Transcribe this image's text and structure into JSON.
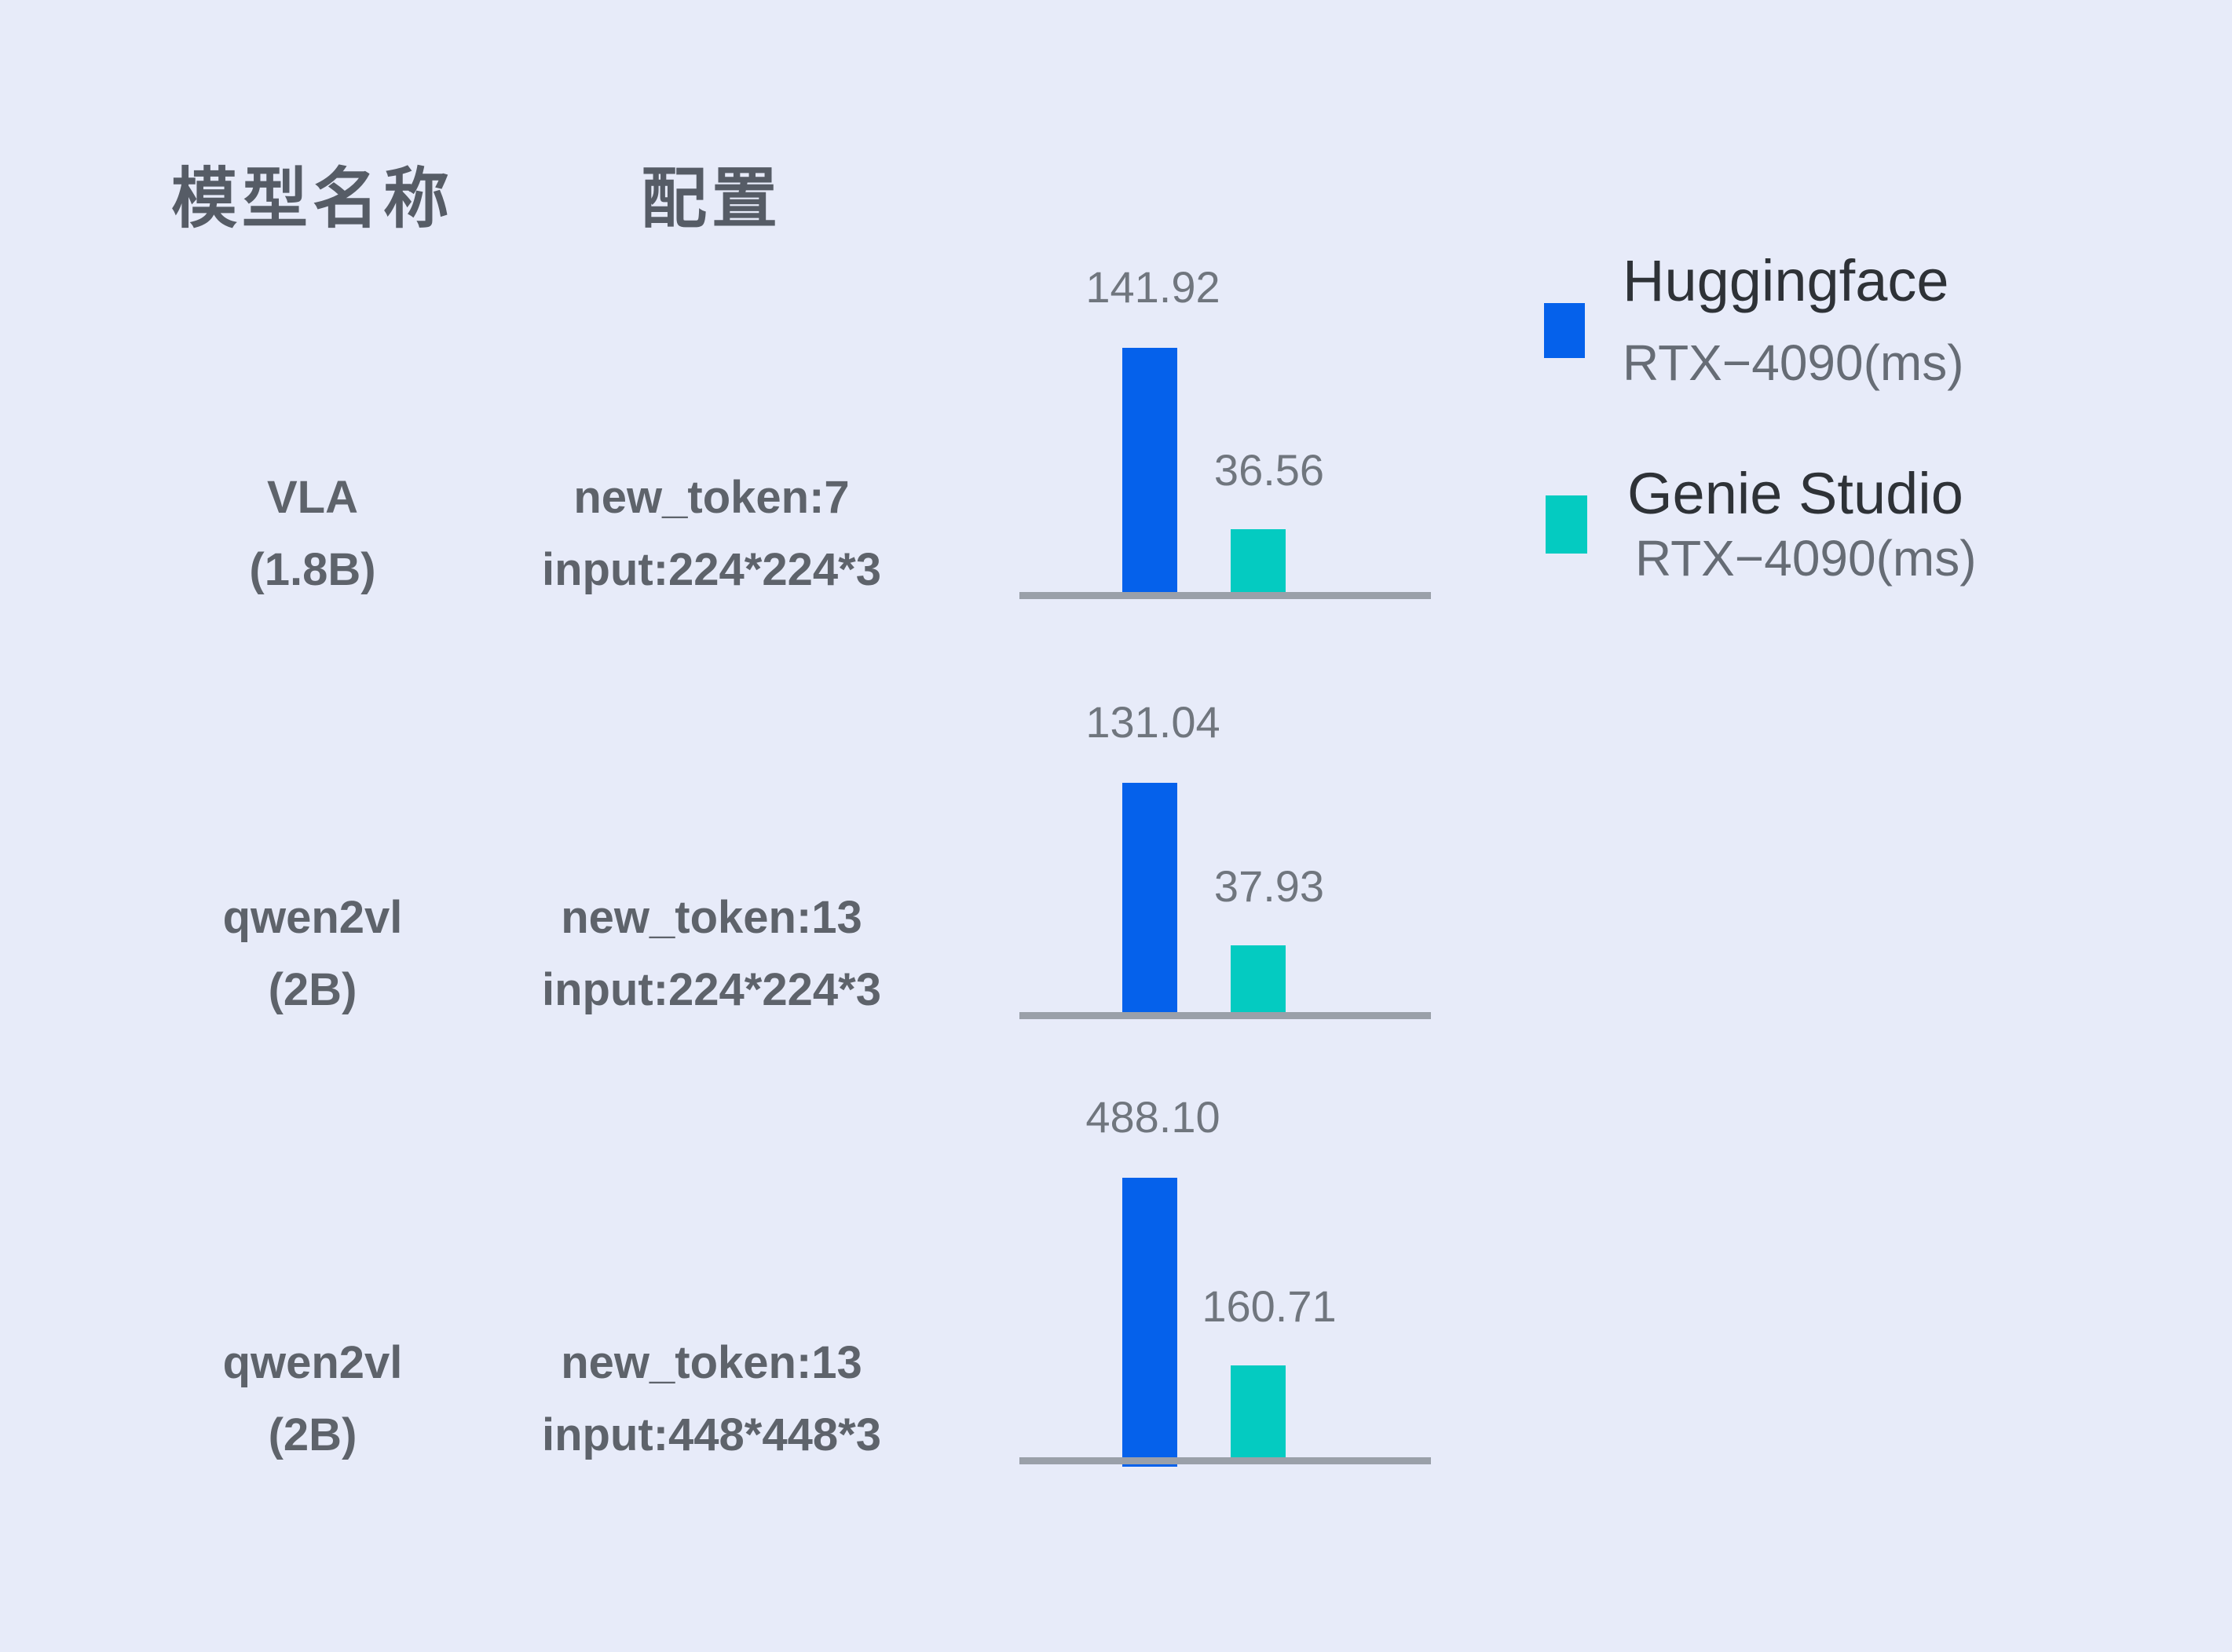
{
  "header": {
    "model_column": "模型名称",
    "config_column": "配置"
  },
  "legend": {
    "items": [
      {
        "name": "Huggingface",
        "device": "RTX−4090(ms)",
        "color": "#0561EB"
      },
      {
        "name": "Genie Studio",
        "device": "RTX−4090(ms)",
        "color": "#04CBC1"
      }
    ]
  },
  "colors": {
    "background": "#E7EBF9",
    "huggingface_bar": "#0561EB",
    "genie_bar": "#04CBC1",
    "axis": "#9AA0A9",
    "value_text": "#70767E",
    "label_text": "#5E636B",
    "header_text": "#565C66",
    "legend_primary_text": "#2E3237",
    "legend_secondary_text": "#666C75"
  },
  "chart_data": {
    "type": "bar",
    "orientation": "vertical",
    "unit": "ms",
    "grid": false,
    "legend_position": "top-right",
    "series": [
      {
        "name": "Huggingface RTX−4090(ms)",
        "color": "#0561EB"
      },
      {
        "name": "Genie Studio RTX−4090(ms)",
        "color": "#04CBC1"
      }
    ],
    "rows": [
      {
        "model_name": "VLA",
        "model_size": "(1.8B)",
        "config": [
          "new_token:7",
          "input:224*224*3"
        ],
        "values": [
          141.92,
          36.56
        ],
        "value_labels": [
          "141.92",
          "36.56"
        ]
      },
      {
        "model_name": "qwen2vl",
        "model_size": "(2B)",
        "config": [
          "new_token:13",
          "input:224*224*3"
        ],
        "values": [
          131.04,
          37.93
        ],
        "value_labels": [
          "131.04",
          "37.93"
        ]
      },
      {
        "model_name": "qwen2vl",
        "model_size": "(2B)",
        "config": [
          "new_token:13",
          "input:448*448*3"
        ],
        "values": [
          488.1,
          160.71
        ],
        "value_labels": [
          "488.10",
          "160.71"
        ]
      }
    ]
  }
}
